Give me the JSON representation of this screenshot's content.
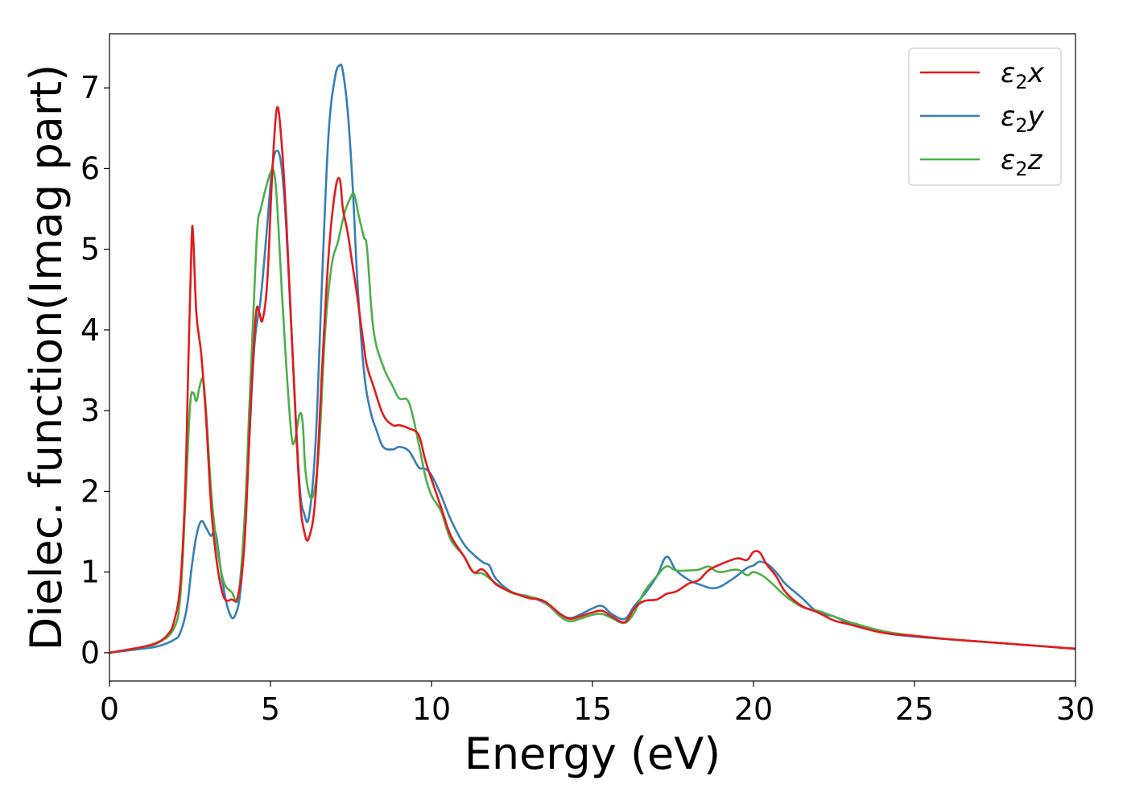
{
  "chart_data": {
    "type": "line",
    "title": "",
    "xlabel": "Energy (eV)",
    "ylabel": "Dielec. function(Imag part)",
    "xlim": [
      0,
      30
    ],
    "ylim": [
      -0.35,
      7.67
    ],
    "xticks": [
      0,
      5,
      10,
      15,
      20,
      25,
      30
    ],
    "xtick_labels": [
      "0",
      "5",
      "10",
      "15",
      "20",
      "25",
      "30"
    ],
    "yticks": [
      0,
      1,
      2,
      3,
      4,
      5,
      6,
      7
    ],
    "ytick_labels": [
      "0",
      "1",
      "2",
      "3",
      "4",
      "5",
      "6",
      "7"
    ],
    "grid": false,
    "legend_position": "top-right",
    "series": [
      {
        "name": "ε2x",
        "name_base": "ε",
        "name_sub": "2",
        "name_suffix": "x",
        "color": "#e41a1c",
        "x": [
          0,
          1,
          1.5,
          1.8,
          2.0,
          2.2,
          2.35,
          2.45,
          2.55,
          2.6,
          2.7,
          2.85,
          3.0,
          3.2,
          3.5,
          3.8,
          4.0,
          4.2,
          4.4,
          4.55,
          4.65,
          4.75,
          4.9,
          5.05,
          5.2,
          5.35,
          5.5,
          5.7,
          5.9,
          6.05,
          6.2,
          6.4,
          6.6,
          6.8,
          7.0,
          7.15,
          7.25,
          7.4,
          7.55,
          7.7,
          7.9,
          8.0,
          8.2,
          8.5,
          8.8,
          9.0,
          9.3,
          9.6,
          9.8,
          10.0,
          10.3,
          10.6,
          11.0,
          11.3,
          11.6,
          12.0,
          12.5,
          13.0,
          13.5,
          14.0,
          14.3,
          14.6,
          15.0,
          15.3,
          15.6,
          16.0,
          16.3,
          16.6,
          17.0,
          17.3,
          17.6,
          18.0,
          18.3,
          18.6,
          19.0,
          19.5,
          19.8,
          20.0,
          20.2,
          20.4,
          20.7,
          21.0,
          21.5,
          22.0,
          22.5,
          23.0,
          24.0,
          25.0,
          26.0,
          27.0,
          28.0,
          29.0,
          30.0
        ],
        "y": [
          0,
          0.07,
          0.13,
          0.22,
          0.38,
          0.85,
          2.0,
          3.6,
          5.1,
          5.15,
          4.2,
          3.7,
          2.9,
          1.6,
          0.75,
          0.66,
          0.72,
          1.4,
          3.2,
          4.2,
          4.22,
          4.12,
          4.6,
          5.9,
          6.75,
          6.3,
          5.3,
          3.6,
          2.0,
          1.5,
          1.43,
          1.95,
          3.5,
          4.9,
          5.7,
          5.87,
          5.5,
          5.2,
          4.8,
          4.4,
          3.8,
          3.55,
          3.3,
          2.95,
          2.82,
          2.82,
          2.78,
          2.7,
          2.4,
          2.15,
          1.8,
          1.45,
          1.2,
          1.0,
          1.03,
          0.85,
          0.75,
          0.68,
          0.64,
          0.48,
          0.42,
          0.45,
          0.5,
          0.52,
          0.45,
          0.38,
          0.55,
          0.64,
          0.66,
          0.73,
          0.76,
          0.86,
          0.9,
          1.02,
          1.1,
          1.17,
          1.15,
          1.25,
          1.24,
          1.1,
          0.95,
          0.75,
          0.58,
          0.5,
          0.4,
          0.35,
          0.25,
          0.21,
          0.17,
          0.14,
          0.11,
          0.08,
          0.05
        ]
      },
      {
        "name": "ε2y",
        "name_base": "ε",
        "name_sub": "2",
        "name_suffix": "y",
        "color": "#377eb8",
        "x": [
          0,
          1,
          1.5,
          2.0,
          2.2,
          2.4,
          2.55,
          2.7,
          2.85,
          3.0,
          3.15,
          3.3,
          3.5,
          3.7,
          3.9,
          4.1,
          4.3,
          4.5,
          4.7,
          4.9,
          5.05,
          5.2,
          5.35,
          5.5,
          5.7,
          5.9,
          6.05,
          6.2,
          6.4,
          6.6,
          6.8,
          7.0,
          7.15,
          7.25,
          7.4,
          7.55,
          7.7,
          7.9,
          8.1,
          8.3,
          8.5,
          8.8,
          9.0,
          9.3,
          9.6,
          9.8,
          10.0,
          10.3,
          10.6,
          11.0,
          11.3,
          11.6,
          11.8,
          12.0,
          12.5,
          13.0,
          13.5,
          14.0,
          14.3,
          14.6,
          15.0,
          15.3,
          15.6,
          16.0,
          16.3,
          16.6,
          17.0,
          17.3,
          17.6,
          18.0,
          18.3,
          18.8,
          19.3,
          19.8,
          20.0,
          20.2,
          20.5,
          20.8,
          21.0,
          21.5,
          22.0,
          22.5,
          23.0,
          24.0,
          25.0,
          26.0,
          27.0,
          28.0,
          29.0,
          30.0
        ],
        "y": [
          0,
          0.05,
          0.08,
          0.16,
          0.25,
          0.55,
          1.05,
          1.45,
          1.63,
          1.55,
          1.45,
          1.48,
          0.9,
          0.52,
          0.46,
          0.9,
          2.3,
          3.8,
          4.4,
          5.3,
          6.0,
          6.22,
          6.0,
          5.2,
          3.6,
          2.1,
          1.72,
          1.7,
          2.6,
          4.6,
          6.4,
          7.12,
          7.28,
          7.2,
          6.7,
          5.8,
          4.6,
          3.5,
          3.0,
          2.75,
          2.55,
          2.52,
          2.55,
          2.5,
          2.3,
          2.28,
          2.2,
          1.95,
          1.65,
          1.35,
          1.22,
          1.12,
          1.08,
          0.92,
          0.75,
          0.7,
          0.62,
          0.48,
          0.43,
          0.47,
          0.55,
          0.58,
          0.48,
          0.42,
          0.58,
          0.72,
          0.95,
          1.19,
          1.02,
          0.9,
          0.85,
          0.8,
          0.9,
          1.05,
          1.08,
          1.13,
          1.08,
          0.95,
          0.85,
          0.68,
          0.5,
          0.45,
          0.36,
          0.25,
          0.2,
          0.17,
          0.14,
          0.11,
          0.08,
          0.05
        ]
      },
      {
        "name": "ε2z",
        "name_base": "ε",
        "name_sub": "2",
        "name_suffix": "z",
        "color": "#4daf4a",
        "x": [
          0,
          1,
          1.5,
          2.0,
          2.2,
          2.35,
          2.5,
          2.6,
          2.7,
          2.8,
          2.9,
          3.0,
          3.2,
          3.5,
          3.8,
          4.0,
          4.2,
          4.35,
          4.5,
          4.6,
          4.7,
          4.85,
          5.0,
          5.1,
          5.2,
          5.35,
          5.5,
          5.65,
          5.75,
          5.9,
          6.0,
          6.1,
          6.3,
          6.5,
          6.7,
          6.9,
          7.1,
          7.3,
          7.5,
          7.6,
          7.75,
          7.9,
          8.0,
          8.2,
          8.5,
          8.8,
          9.0,
          9.3,
          9.6,
          9.8,
          10.0,
          10.3,
          10.6,
          11.0,
          11.3,
          11.6,
          12.0,
          12.5,
          13.0,
          13.5,
          14.0,
          14.3,
          14.6,
          15.0,
          15.3,
          15.6,
          16.0,
          16.3,
          16.6,
          17.0,
          17.3,
          17.6,
          18.0,
          18.3,
          18.6,
          18.8,
          19.0,
          19.5,
          19.8,
          20.0,
          20.3,
          20.6,
          21.0,
          21.5,
          22.0,
          22.5,
          23.0,
          24.0,
          25.0,
          26.0,
          27.0,
          28.0,
          29.0,
          30.0
        ],
        "y": [
          0,
          0.07,
          0.12,
          0.3,
          0.7,
          1.8,
          3.05,
          3.22,
          3.12,
          3.3,
          3.38,
          3.0,
          1.8,
          0.95,
          0.75,
          0.7,
          1.7,
          3.1,
          4.5,
          5.3,
          5.5,
          5.75,
          5.95,
          5.97,
          5.6,
          4.5,
          3.5,
          2.7,
          2.62,
          2.95,
          2.85,
          2.2,
          1.92,
          2.5,
          4.0,
          4.8,
          5.1,
          5.45,
          5.65,
          5.68,
          5.4,
          5.15,
          5.0,
          4.0,
          3.55,
          3.3,
          3.15,
          3.1,
          2.6,
          2.2,
          1.95,
          1.75,
          1.4,
          1.2,
          1.0,
          0.98,
          0.86,
          0.74,
          0.7,
          0.63,
          0.45,
          0.39,
          0.42,
          0.47,
          0.48,
          0.43,
          0.37,
          0.5,
          0.75,
          0.95,
          1.07,
          1.02,
          1.02,
          1.03,
          1.07,
          1.02,
          1.0,
          1.03,
          0.96,
          1.0,
          0.95,
          0.85,
          0.7,
          0.57,
          0.52,
          0.45,
          0.38,
          0.27,
          0.21,
          0.17,
          0.14,
          0.11,
          0.08,
          0.05
        ]
      }
    ]
  }
}
